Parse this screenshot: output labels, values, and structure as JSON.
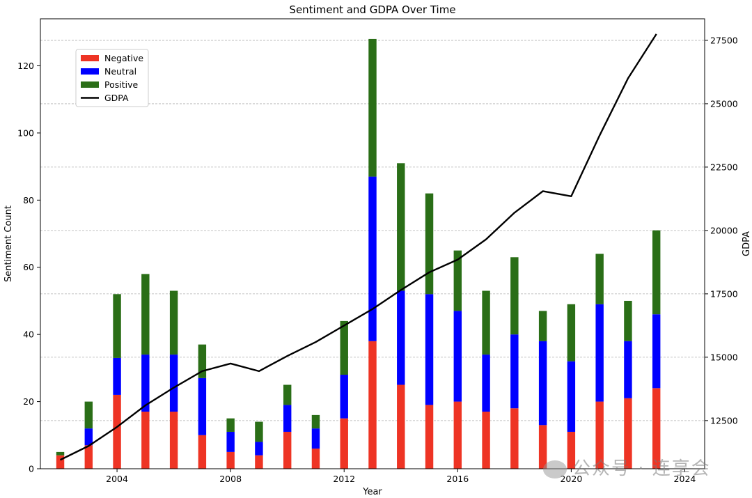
{
  "chart_data": {
    "type": "bar",
    "stacked": true,
    "title": "Sentiment and GDPA Over Time",
    "xlabel": "Year",
    "ylabel": "Sentiment Count",
    "y2label": "GDPA",
    "xlim": [
      2001.3,
      2024.7
    ],
    "ylim": [
      0,
      134
    ],
    "y2lim": [
      10600,
      28350
    ],
    "x_ticks": [
      2004,
      2008,
      2012,
      2016,
      2020,
      2024
    ],
    "y_ticks": [
      0,
      20,
      40,
      60,
      80,
      100,
      120
    ],
    "y2_ticks": [
      12500,
      15000,
      17500,
      20000,
      22500,
      25000,
      27500
    ],
    "grid": "horizontal dashed (right axis)",
    "legend_position": "upper-left",
    "years": [
      2002,
      2003,
      2004,
      2005,
      2006,
      2007,
      2008,
      2009,
      2010,
      2011,
      2012,
      2013,
      2014,
      2015,
      2016,
      2017,
      2018,
      2019,
      2020,
      2021,
      2022,
      2023
    ],
    "series": [
      {
        "name": "Negative",
        "color": "#ee3424",
        "values": [
          4,
          7,
          22,
          17,
          17,
          10,
          5,
          4,
          11,
          6,
          15,
          38,
          25,
          19,
          20,
          17,
          18,
          13,
          11,
          20,
          21,
          24
        ]
      },
      {
        "name": "Neutral",
        "color": "#0000ff",
        "values": [
          0,
          5,
          11,
          17,
          17,
          17,
          6,
          4,
          8,
          6,
          13,
          49,
          28,
          33,
          27,
          17,
          22,
          25,
          21,
          29,
          17,
          22
        ]
      },
      {
        "name": "Positive",
        "color": "#2a6e17",
        "values": [
          1,
          8,
          19,
          24,
          19,
          10,
          4,
          6,
          6,
          4,
          16,
          41,
          38,
          30,
          18,
          19,
          23,
          9,
          17,
          15,
          12,
          25
        ]
      }
    ],
    "line": {
      "name": "GDPA",
      "color": "#000000",
      "values": [
        10950,
        11500,
        12250,
        13100,
        13800,
        14450,
        14750,
        14450,
        15050,
        15600,
        16250,
        16900,
        17650,
        18350,
        18850,
        19650,
        20700,
        21550,
        21350,
        23750,
        26000,
        27750
      ]
    }
  },
  "watermark": {
    "text": "公众号 · 连享会"
  }
}
